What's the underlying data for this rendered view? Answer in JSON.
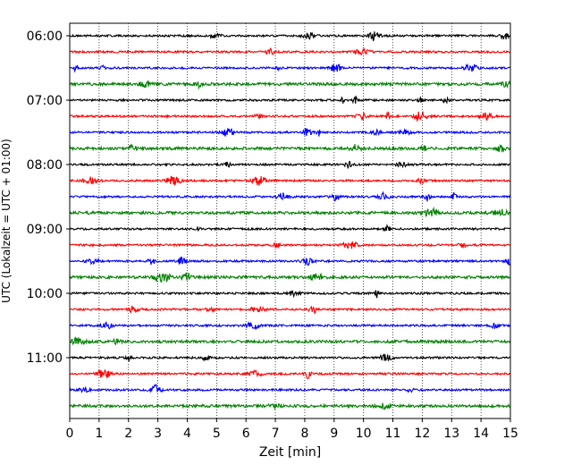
{
  "chart_data": {
    "type": "line",
    "title": "",
    "xlabel": "Zeit  [min]",
    "ylabel": "UTC (Lokalzeit = UTC + 01:00)",
    "xlim": [
      0,
      15
    ],
    "xticks": [
      "0",
      "1",
      "2",
      "3",
      "4",
      "5",
      "6",
      "7",
      "8",
      "9",
      "10",
      "11",
      "12",
      "13",
      "14",
      "15"
    ],
    "ytick_labels": [
      "06:00",
      "07:00",
      "08:00",
      "09:00",
      "10:00",
      "11:00"
    ],
    "grid": "vertical dotted",
    "trace_interval_min": 15,
    "color_cycle": [
      "#000000",
      "#ff0000",
      "#0000ff",
      "#008000"
    ],
    "traces": [
      {
        "time": "06:00",
        "color": "#000000"
      },
      {
        "time": "06:15",
        "color": "#ff0000"
      },
      {
        "time": "06:30",
        "color": "#0000ff"
      },
      {
        "time": "06:45",
        "color": "#008000"
      },
      {
        "time": "07:00",
        "color": "#000000"
      },
      {
        "time": "07:15",
        "color": "#ff0000"
      },
      {
        "time": "07:30",
        "color": "#0000ff"
      },
      {
        "time": "07:45",
        "color": "#008000"
      },
      {
        "time": "08:00",
        "color": "#000000"
      },
      {
        "time": "08:15",
        "color": "#ff0000"
      },
      {
        "time": "08:30",
        "color": "#0000ff"
      },
      {
        "time": "08:45",
        "color": "#008000"
      },
      {
        "time": "09:00",
        "color": "#000000"
      },
      {
        "time": "09:15",
        "color": "#ff0000"
      },
      {
        "time": "09:30",
        "color": "#0000ff"
      },
      {
        "time": "09:45",
        "color": "#008000"
      },
      {
        "time": "10:00",
        "color": "#000000"
      },
      {
        "time": "10:15",
        "color": "#ff0000"
      },
      {
        "time": "10:30",
        "color": "#0000ff"
      },
      {
        "time": "10:45",
        "color": "#008000"
      },
      {
        "time": "11:00",
        "color": "#000000"
      },
      {
        "time": "11:15",
        "color": "#ff0000"
      },
      {
        "time": "11:30",
        "color": "#0000ff"
      },
      {
        "time": "11:45",
        "color": "#008000"
      }
    ]
  }
}
